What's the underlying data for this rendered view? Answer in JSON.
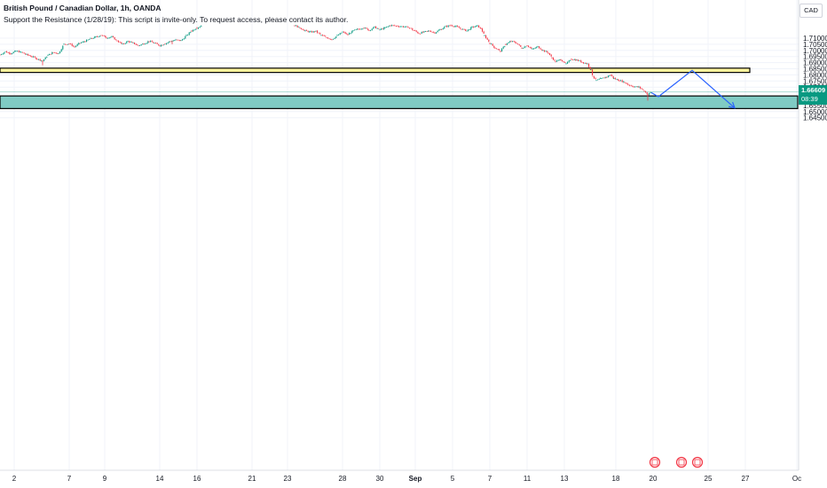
{
  "header": {
    "title": "British Pound / Canadian Dollar, 1h, OANDA",
    "subtitle": "Support the Resistance (1/28/19): This script is invite-only. To request access, please contact its author."
  },
  "currency": "CAD",
  "last_price": {
    "value": "1.66609",
    "countdown": "08:39"
  },
  "colors": {
    "up": "#089981",
    "down": "#f23645",
    "resistance": "#fff59d",
    "support": "#80cbc4",
    "projection": "#2962ff",
    "event": "#f23645"
  },
  "chart_data": {
    "type": "candlestick",
    "title": "British Pound / Canadian Dollar, 1h, OANDA",
    "x_ticks": [
      "2",
      "7",
      "9",
      "14",
      "16",
      "21",
      "23",
      "28",
      "30",
      "Sep",
      "5",
      "7",
      "11",
      "13",
      "18",
      "20",
      "25",
      "27",
      "Oc"
    ],
    "y_ticks": [
      "1.71000",
      "1.70500",
      "1.70000",
      "1.69500",
      "1.69000",
      "1.68500",
      "1.68000",
      "1.67500",
      "1.67000",
      "1.66500",
      "1.66000",
      "1.65500",
      "1.65000",
      "1.64500"
    ],
    "ylim": [
      1.6412,
      1.7209
    ],
    "price_path": [
      [
        0,
        1.6965
      ],
      [
        6,
        1.699
      ],
      [
        12,
        1.6975
      ],
      [
        18,
        1.6995
      ],
      [
        24,
        1.6985
      ],
      [
        30,
        1.6965
      ],
      [
        36,
        1.695
      ],
      [
        42,
        1.693
      ],
      [
        48,
        1.6915
      ],
      [
        54,
        1.696
      ],
      [
        60,
        1.6985
      ],
      [
        66,
        1.6975
      ],
      [
        72,
        1.705
      ],
      [
        78,
        1.7055
      ],
      [
        84,
        1.703
      ],
      [
        90,
        1.706
      ],
      [
        96,
        1.7075
      ],
      [
        102,
        1.7095
      ],
      [
        108,
        1.711
      ],
      [
        114,
        1.7125
      ],
      [
        120,
        1.7105
      ],
      [
        126,
        1.711
      ],
      [
        132,
        1.708
      ],
      [
        138,
        1.705
      ],
      [
        144,
        1.7075
      ],
      [
        150,
        1.706
      ],
      [
        156,
        1.704
      ],
      [
        162,
        1.7055
      ],
      [
        168,
        1.7075
      ],
      [
        174,
        1.706
      ],
      [
        180,
        1.704
      ],
      [
        186,
        1.7055
      ],
      [
        192,
        1.7075
      ],
      [
        198,
        1.7085
      ],
      [
        204,
        1.708
      ],
      [
        210,
        1.712
      ],
      [
        216,
        1.716
      ],
      [
        222,
        1.7185
      ],
      [
        228,
        1.7205
      ],
      [
        332,
        1.7205
      ],
      [
        338,
        1.7185
      ],
      [
        344,
        1.716
      ],
      [
        350,
        1.715
      ],
      [
        356,
        1.7155
      ],
      [
        362,
        1.7125
      ],
      [
        368,
        1.7105
      ],
      [
        374,
        1.709
      ],
      [
        380,
        1.712
      ],
      [
        386,
        1.715
      ],
      [
        392,
        1.713
      ],
      [
        398,
        1.716
      ],
      [
        404,
        1.7175
      ],
      [
        410,
        1.7185
      ],
      [
        416,
        1.7165
      ],
      [
        422,
        1.719
      ],
      [
        428,
        1.717
      ],
      [
        434,
        1.7185
      ],
      [
        440,
        1.7205
      ],
      [
        460,
        1.719
      ],
      [
        466,
        1.7165
      ],
      [
        472,
        1.714
      ],
      [
        478,
        1.715
      ],
      [
        484,
        1.716
      ],
      [
        490,
        1.7145
      ],
      [
        496,
        1.717
      ],
      [
        502,
        1.7195
      ],
      [
        508,
        1.7205
      ],
      [
        514,
        1.7195
      ],
      [
        520,
        1.7175
      ],
      [
        526,
        1.716
      ],
      [
        532,
        1.719
      ],
      [
        538,
        1.72
      ],
      [
        542,
        1.718
      ],
      [
        546,
        1.712
      ],
      [
        552,
        1.706
      ],
      [
        558,
        1.702
      ],
      [
        564,
        1.6995
      ],
      [
        570,
        1.705
      ],
      [
        576,
        1.7075
      ],
      [
        582,
        1.706
      ],
      [
        588,
        1.702
      ],
      [
        594,
        1.704
      ],
      [
        600,
        1.701
      ],
      [
        606,
        1.703
      ],
      [
        612,
        1.7
      ],
      [
        618,
        1.698
      ],
      [
        622,
        1.694
      ],
      [
        626,
        1.691
      ],
      [
        632,
        1.6925
      ],
      [
        638,
        1.689
      ],
      [
        644,
        1.693
      ],
      [
        650,
        1.692
      ],
      [
        656,
        1.6905
      ],
      [
        662,
        1.689
      ],
      [
        666,
        1.684
      ],
      [
        668,
        1.679
      ],
      [
        672,
        1.6755
      ],
      [
        678,
        1.677
      ],
      [
        684,
        1.6785
      ],
      [
        688,
        1.68
      ],
      [
        692,
        1.677
      ],
      [
        698,
        1.6755
      ],
      [
        704,
        1.674
      ],
      [
        708,
        1.672
      ],
      [
        714,
        1.6705
      ],
      [
        720,
        1.67
      ],
      [
        726,
        1.667
      ],
      [
        730,
        1.664
      ],
      [
        734,
        1.6661
      ]
    ],
    "resistance_zone": [
      1.682,
      1.6855
    ],
    "support_zone": [
      1.6525,
      1.6628
    ],
    "last_price_line": 1.66609,
    "projection": [
      [
        734,
        1.6655
      ],
      [
        742,
        1.6622
      ],
      [
        780,
        1.6837
      ],
      [
        828,
        1.653
      ]
    ],
    "event_markers": [
      738,
      768,
      786
    ]
  }
}
